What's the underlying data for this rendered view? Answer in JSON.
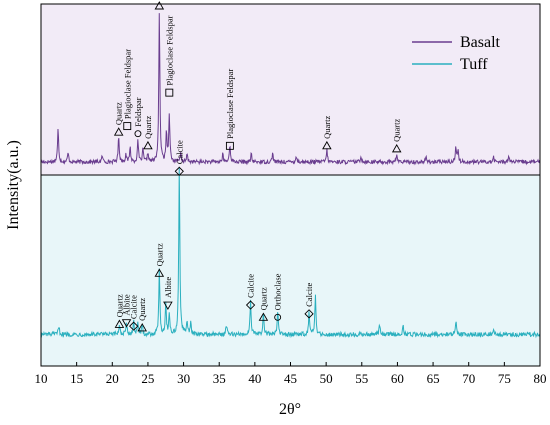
{
  "chart_data": {
    "type": "line",
    "xlabel": "2θ°",
    "ylabel": "Intensity(a.u.)",
    "xlim": [
      10,
      80
    ],
    "x_ticks": [
      10,
      15,
      20,
      25,
      30,
      35,
      40,
      45,
      50,
      55,
      60,
      65,
      70,
      75,
      80
    ],
    "legend_position": "top-right",
    "panel_colors": {
      "top": "#f2ebf7",
      "bottom": "#e8f6f9"
    },
    "series": [
      {
        "name": "Basalt",
        "color": "#6a3d8f",
        "panel": "top",
        "baseline": 0.04,
        "peaks": [
          [
            12.4,
            0.22
          ],
          [
            13.8,
            0.06
          ],
          [
            18.6,
            0.04
          ],
          [
            20.9,
            0.17
          ],
          [
            21.9,
            0.05
          ],
          [
            22.5,
            0.1
          ],
          [
            23.6,
            0.14
          ],
          [
            24.3,
            0.08
          ],
          [
            25.0,
            0.06
          ],
          [
            26.6,
            0.98
          ],
          [
            27.6,
            0.2
          ],
          [
            28.0,
            0.32
          ],
          [
            29.6,
            0.06
          ],
          [
            30.5,
            0.05
          ],
          [
            35.5,
            0.05
          ],
          [
            36.5,
            0.12
          ],
          [
            39.5,
            0.05
          ],
          [
            42.5,
            0.06
          ],
          [
            45.8,
            0.04
          ],
          [
            50.1,
            0.08
          ],
          [
            54.9,
            0.04
          ],
          [
            59.9,
            0.05
          ],
          [
            64.0,
            0.03
          ],
          [
            68.2,
            0.1
          ],
          [
            68.5,
            0.08
          ],
          [
            73.5,
            0.03
          ],
          [
            75.6,
            0.04
          ]
        ]
      },
      {
        "name": "Tuff",
        "color": "#2bb0bf",
        "panel": "bottom",
        "baseline": 0.1,
        "peaks": [
          [
            12.5,
            0.05
          ],
          [
            21.0,
            0.06
          ],
          [
            22.0,
            0.06
          ],
          [
            23.0,
            0.08
          ],
          [
            23.6,
            0.06
          ],
          [
            24.2,
            0.05
          ],
          [
            26.6,
            0.38
          ],
          [
            27.5,
            0.18
          ],
          [
            28.0,
            0.12
          ],
          [
            29.4,
            0.96
          ],
          [
            30.5,
            0.08
          ],
          [
            31.0,
            0.06
          ],
          [
            36.0,
            0.06
          ],
          [
            39.4,
            0.2
          ],
          [
            41.2,
            0.12
          ],
          [
            43.2,
            0.14
          ],
          [
            47.6,
            0.12
          ],
          [
            48.5,
            0.22
          ],
          [
            57.5,
            0.05
          ],
          [
            60.8,
            0.05
          ],
          [
            68.2,
            0.08
          ],
          [
            73.5,
            0.03
          ]
        ]
      }
    ],
    "annotations": [
      {
        "panel": "top",
        "x": 20.9,
        "h": 0.17,
        "marker": "triangle-up",
        "label": "Quartz"
      },
      {
        "panel": "top",
        "x": 22.1,
        "h": 0.21,
        "marker": "square",
        "label": "Plagioclase Feldspar"
      },
      {
        "panel": "top",
        "x": 23.6,
        "h": 0.16,
        "marker": "circle",
        "label": "Feldspar"
      },
      {
        "panel": "top",
        "x": 25.0,
        "h": 0.08,
        "marker": "triangle-up",
        "label": "Quartz"
      },
      {
        "panel": "top",
        "x": 26.6,
        "h": 1.0,
        "marker": "triangle-up",
        "label": "Quartz"
      },
      {
        "panel": "top",
        "x": 28.0,
        "h": 0.43,
        "marker": "square",
        "label": "Plagioclase Feldspar"
      },
      {
        "panel": "top",
        "x": 36.5,
        "h": 0.08,
        "marker": "square",
        "label": "Plagioclase Feldspar"
      },
      {
        "panel": "top",
        "x": 50.1,
        "h": 0.08,
        "marker": "triangle-up",
        "label": "Quartz"
      },
      {
        "panel": "top",
        "x": 59.9,
        "h": 0.06,
        "marker": "triangle-up",
        "label": "Quartz"
      },
      {
        "panel": "bottom",
        "x": 21.0,
        "h": 0.1,
        "marker": "triangle-up",
        "label": "Quartz"
      },
      {
        "panel": "bottom",
        "x": 22.0,
        "h": 0.11,
        "marker": "triangle-down",
        "label": "Albite"
      },
      {
        "panel": "bottom",
        "x": 23.0,
        "h": 0.09,
        "marker": "diamond",
        "label": "Calcite"
      },
      {
        "panel": "bottom",
        "x": 24.2,
        "h": 0.08,
        "marker": "triangle-up",
        "label": "Quartz"
      },
      {
        "panel": "bottom",
        "x": 26.6,
        "h": 0.39,
        "marker": "triangle-up",
        "label": "Quartz"
      },
      {
        "panel": "bottom",
        "x": 27.8,
        "h": 0.21,
        "marker": "triangle-down",
        "label": "Albite"
      },
      {
        "panel": "bottom",
        "x": 29.4,
        "h": 0.97,
        "marker": "diamond",
        "label": "Calcite"
      },
      {
        "panel": "bottom",
        "x": 39.4,
        "h": 0.21,
        "marker": "diamond",
        "label": "Calcite"
      },
      {
        "panel": "bottom",
        "x": 41.2,
        "h": 0.14,
        "marker": "triangle-up",
        "label": "Quartz"
      },
      {
        "panel": "bottom",
        "x": 43.2,
        "h": 0.14,
        "marker": "circle",
        "label": "Orthoclase"
      },
      {
        "panel": "bottom",
        "x": 47.6,
        "h": 0.16,
        "marker": "diamond",
        "label": "Calcite"
      }
    ]
  }
}
